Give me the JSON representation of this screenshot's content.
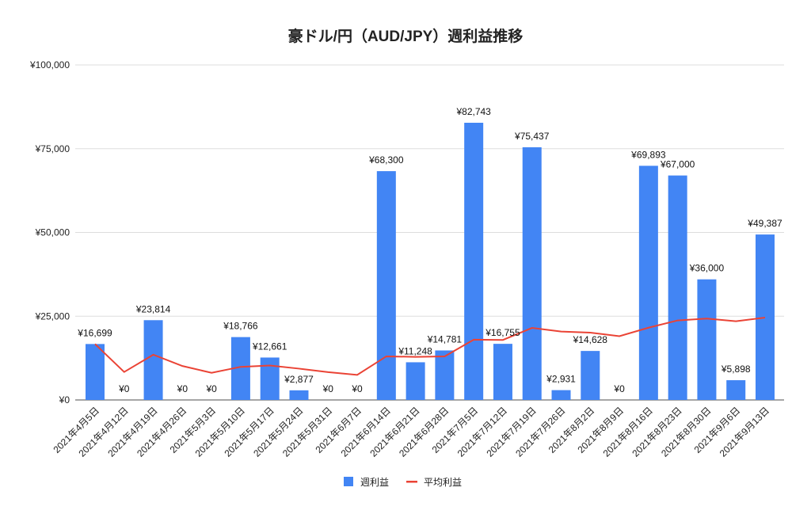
{
  "chart_data": {
    "type": "bar",
    "title": "豪ドル/円（AUD/JPY）週利益推移",
    "xlabel": "",
    "ylabel": "",
    "ylim": [
      0,
      100000
    ],
    "yticks": [
      "¥0",
      "¥25,000",
      "¥50,000",
      "¥75,000",
      "¥100,000"
    ],
    "ytick_values": [
      0,
      25000,
      50000,
      75000,
      100000
    ],
    "grid": true,
    "legend_position": "bottom",
    "categories": [
      "2021年4月5日",
      "2021年4月12日",
      "2021年4月19日",
      "2021年4月26日",
      "2021年5月3日",
      "2021年5月10日",
      "2021年5月17日",
      "2021年5月24日",
      "2021年5月31日",
      "2021年6月7日",
      "2021年6月14日",
      "2021年6月21日",
      "2021年6月28日",
      "2021年7月5日",
      "2021年7月12日",
      "2021年7月19日",
      "2021年7月26日",
      "2021年8月2日",
      "2021年8月9日",
      "2021年8月16日",
      "2021年8月23日",
      "2021年8月30日",
      "2021年9月6日",
      "2021年9月13日"
    ],
    "series": [
      {
        "name": "週利益",
        "type": "bar",
        "color": "#4285f4",
        "values": [
          16699,
          0,
          23814,
          0,
          0,
          18766,
          12661,
          2877,
          0,
          0,
          68300,
          11248,
          14781,
          82743,
          16755,
          75437,
          2931,
          14628,
          0,
          69893,
          67000,
          36000,
          5898,
          49387
        ],
        "labels": [
          "¥16,699",
          "¥0",
          "¥23,814",
          "¥0",
          "¥0",
          "¥18,766",
          "¥12,661",
          "¥2,877",
          "¥0",
          "¥0",
          "¥68,300",
          "¥11,248",
          "¥14,781",
          "¥82,743",
          "¥16,755",
          "¥75,437",
          "¥2,931",
          "¥14,628",
          "¥0",
          "¥69,893",
          "¥67,000",
          "¥36,000",
          "¥5,898",
          "¥49,387"
        ]
      },
      {
        "name": "平均利益",
        "type": "line",
        "color": "#ea4335",
        "values": [
          16699,
          8350,
          13504,
          10128,
          8103,
          9880,
          10277,
          9352,
          8313,
          7482,
          13011,
          12864,
          13011,
          17992,
          17910,
          21505,
          20412,
          20091,
          19034,
          21577,
          23740,
          24297,
          23497,
          24576
        ]
      }
    ]
  }
}
